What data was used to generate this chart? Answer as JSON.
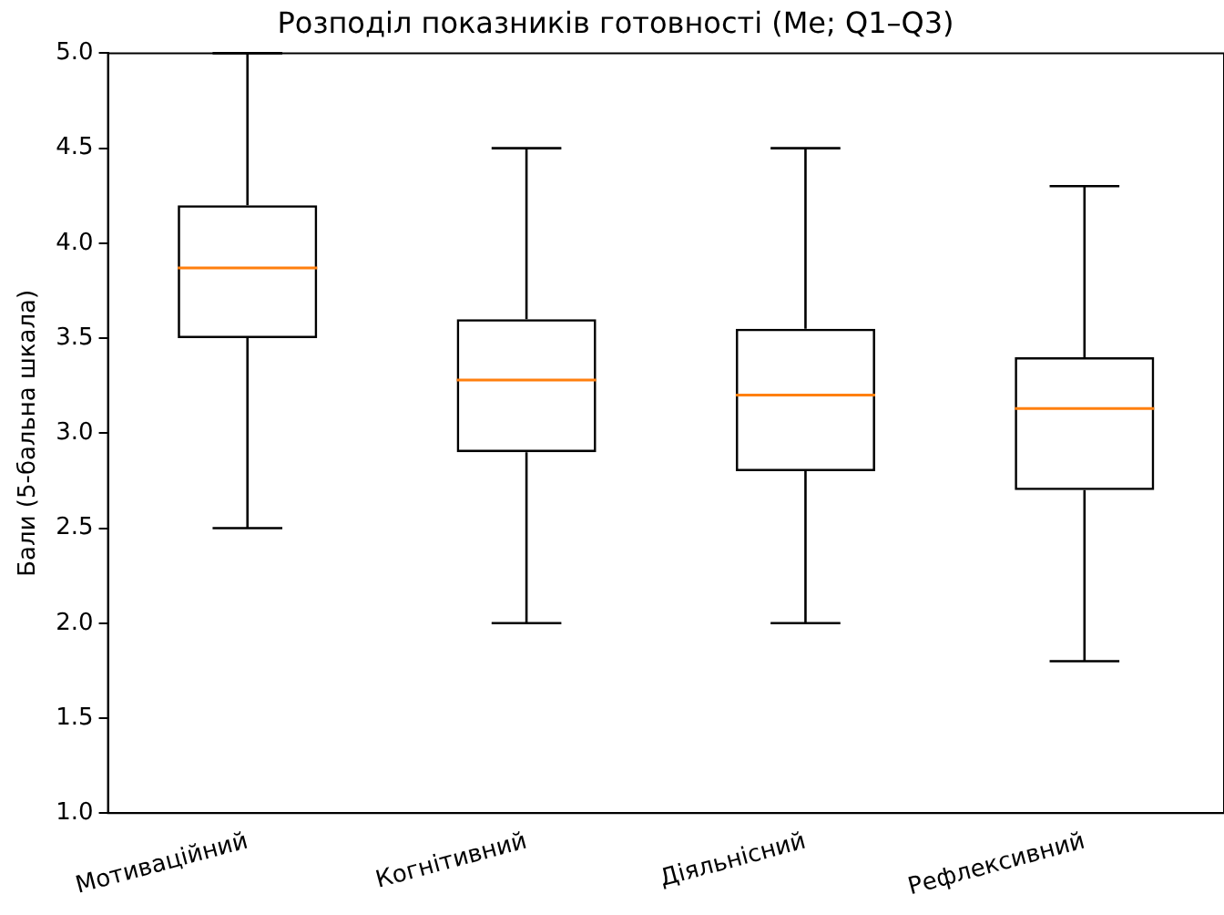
{
  "chart_data": {
    "type": "box",
    "title": "Розподіл показників готовності (Me; Q1–Q3)",
    "ylabel": "Бали (5-бальна шкала)",
    "categories": [
      "Мотиваційний",
      "Когнітивний",
      "Діяльнісний",
      "Рефлексивний"
    ],
    "boxes": [
      {
        "low": 2.5,
        "q1": 3.5,
        "median": 3.87,
        "q3": 4.2,
        "high": 5.0
      },
      {
        "low": 2.0,
        "q1": 2.9,
        "median": 3.28,
        "q3": 3.6,
        "high": 4.5
      },
      {
        "low": 2.0,
        "q1": 2.8,
        "median": 3.2,
        "q3": 3.55,
        "high": 4.5
      },
      {
        "low": 1.8,
        "q1": 2.7,
        "median": 3.13,
        "q3": 3.4,
        "high": 4.3
      }
    ],
    "ylim": [
      1.0,
      5.0
    ],
    "yticks": [
      {
        "value": 1,
        "label": "1.0"
      },
      1.5,
      {
        "value": 2,
        "label": "2.0"
      },
      2.5,
      {
        "value": 3,
        "label": "3.0"
      },
      3.5,
      {
        "value": 4,
        "label": "4.0"
      },
      4.5,
      {
        "value": 5,
        "label": "5.0"
      }
    ]
  }
}
